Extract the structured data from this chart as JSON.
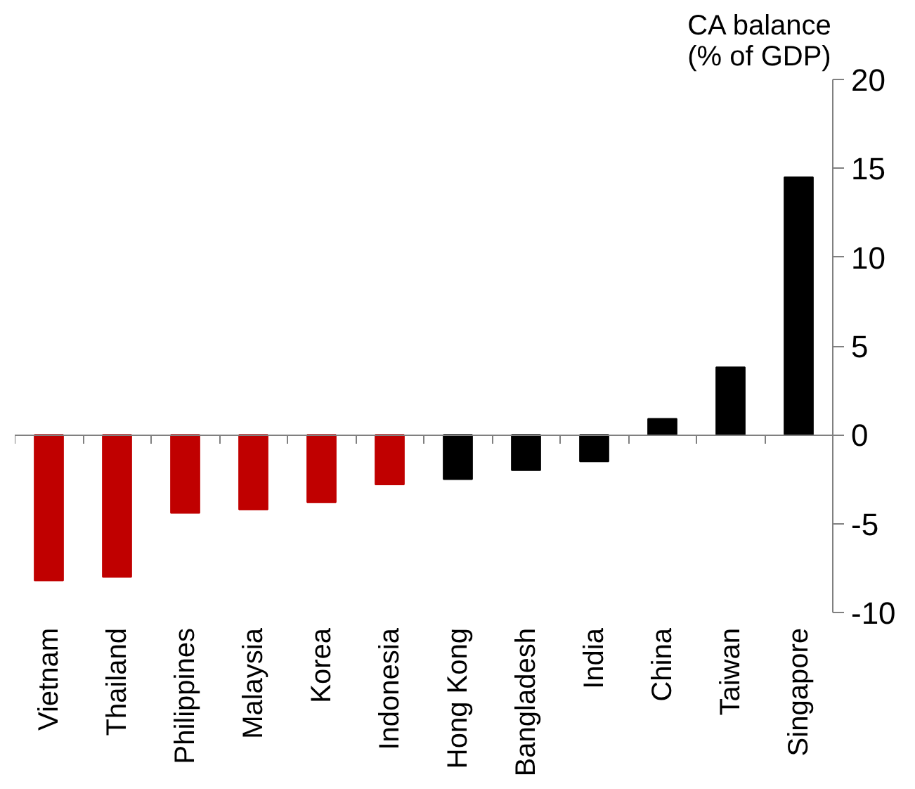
{
  "chart_data": {
    "type": "bar",
    "ylabel": "CA balance\n(% of GDP)",
    "categories": [
      "Vietnam",
      "Thailand",
      "Philippines",
      "Malaysia",
      "Korea",
      "Indonesia",
      "Hong Kong",
      "Bangladesh",
      "India",
      "China",
      "Taiwan",
      "Singapore"
    ],
    "values": [
      -8.2,
      -8.0,
      -4.4,
      -4.2,
      -3.8,
      -2.8,
      -2.5,
      -2.0,
      -1.5,
      0.9,
      3.8,
      14.5
    ],
    "colors": [
      "#c00000",
      "#c00000",
      "#c00000",
      "#c00000",
      "#c00000",
      "#c00000",
      "#000000",
      "#000000",
      "#000000",
      "#000000",
      "#000000",
      "#000000"
    ],
    "ylim": [
      -10,
      20
    ],
    "yticks": [
      -10,
      -5,
      0,
      5,
      10,
      15,
      20
    ]
  }
}
